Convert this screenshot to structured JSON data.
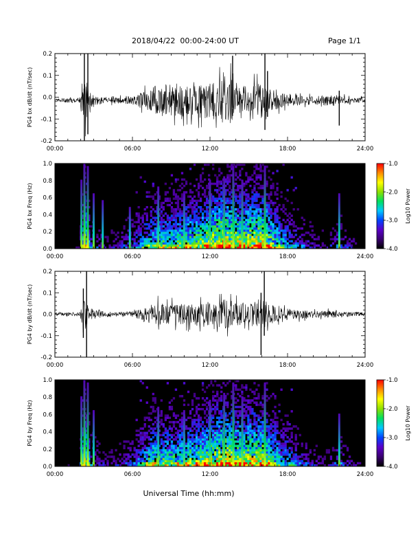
{
  "header": {
    "title": "2018/04/22  00:00-24:00 UT",
    "page": "Page 1/1"
  },
  "chart_data": [
    {
      "type": "line",
      "ylabel": "PG4 bx dB/dt (nT/sec)",
      "xlim": [
        0,
        24
      ],
      "ylim": [
        -0.2,
        0.2
      ],
      "xticks": [
        "00:00",
        "06:00",
        "12:00",
        "18:00",
        "24:00"
      ],
      "yticks": [
        "-0.2",
        "-0.1",
        "0.0",
        "0.1",
        "0.2"
      ],
      "baseline": -0.015,
      "envelope": [
        {
          "t": 0.0,
          "a": 0.01
        },
        {
          "t": 1.9,
          "a": 0.012
        },
        {
          "t": 2.1,
          "a": 0.06
        },
        {
          "t": 2.4,
          "a": 0.13
        },
        {
          "t": 2.6,
          "a": 0.05
        },
        {
          "t": 3.2,
          "a": 0.025
        },
        {
          "t": 4.5,
          "a": 0.015
        },
        {
          "t": 6.0,
          "a": 0.02
        },
        {
          "t": 7.0,
          "a": 0.05
        },
        {
          "t": 8.0,
          "a": 0.08
        },
        {
          "t": 9.0,
          "a": 0.09
        },
        {
          "t": 10.5,
          "a": 0.08
        },
        {
          "t": 11.5,
          "a": 0.09
        },
        {
          "t": 12.5,
          "a": 0.1
        },
        {
          "t": 13.5,
          "a": 0.12
        },
        {
          "t": 14.3,
          "a": 0.08
        },
        {
          "t": 15.0,
          "a": 0.07
        },
        {
          "t": 16.0,
          "a": 0.09
        },
        {
          "t": 17.0,
          "a": 0.05
        },
        {
          "t": 18.0,
          "a": 0.035
        },
        {
          "t": 20.0,
          "a": 0.02
        },
        {
          "t": 21.5,
          "a": 0.03
        },
        {
          "t": 22.5,
          "a": 0.02
        },
        {
          "t": 24.0,
          "a": 0.012
        }
      ],
      "spikes": [
        {
          "t": 2.28,
          "min": -0.21,
          "max": 0.2
        },
        {
          "t": 2.55,
          "min": -0.17,
          "max": 0.2
        },
        {
          "t": 13.75,
          "min": -0.05,
          "max": 0.19
        },
        {
          "t": 16.25,
          "min": -0.15,
          "max": 0.2
        },
        {
          "t": 16.45,
          "min": -0.09,
          "max": 0.12
        },
        {
          "t": 22.0,
          "min": -0.13,
          "max": 0.03
        }
      ]
    },
    {
      "type": "heatmap",
      "ylabel": "PG4 bx Freq (Hz)",
      "xlim": [
        0,
        24
      ],
      "ylim": [
        0.0,
        1.0
      ],
      "xticks": [
        "00:00",
        "06:00",
        "12:00",
        "18:00",
        "24:00"
      ],
      "yticks": [
        "0.0",
        "0.2",
        "0.4",
        "0.6",
        "0.8",
        "1.0"
      ],
      "colorbar": {
        "label": "Log10 Power",
        "range": [
          -4.0,
          -1.0
        ],
        "ticks": [
          "-1.0",
          "-2.0",
          "-3.0",
          "-4.0"
        ]
      },
      "activity": [
        {
          "t": 0.0,
          "a": 0.05
        },
        {
          "t": 1.9,
          "a": 0.1
        },
        {
          "t": 2.3,
          "a": 0.8
        },
        {
          "t": 2.8,
          "a": 0.3
        },
        {
          "t": 4.0,
          "a": 0.15
        },
        {
          "t": 6.0,
          "a": 0.3
        },
        {
          "t": 7.5,
          "a": 0.55
        },
        {
          "t": 9.5,
          "a": 0.6
        },
        {
          "t": 11.5,
          "a": 0.7
        },
        {
          "t": 13.0,
          "a": 0.85
        },
        {
          "t": 14.5,
          "a": 0.75
        },
        {
          "t": 16.0,
          "a": 0.85
        },
        {
          "t": 17.5,
          "a": 0.5
        },
        {
          "t": 19.5,
          "a": 0.25
        },
        {
          "t": 21.0,
          "a": 0.15
        },
        {
          "t": 22.0,
          "a": 0.3
        },
        {
          "t": 24.0,
          "a": 0.05
        }
      ],
      "streaks": [
        {
          "t": 2.05,
          "a": 0.7
        },
        {
          "t": 2.28,
          "a": 1.0
        },
        {
          "t": 2.55,
          "a": 0.9
        },
        {
          "t": 3.0,
          "a": 0.5
        },
        {
          "t": 3.7,
          "a": 0.4
        },
        {
          "t": 5.8,
          "a": 0.3
        },
        {
          "t": 8.0,
          "a": 0.6
        },
        {
          "t": 10.0,
          "a": 0.5
        },
        {
          "t": 12.0,
          "a": 0.7
        },
        {
          "t": 13.1,
          "a": 0.75
        },
        {
          "t": 13.8,
          "a": 0.9
        },
        {
          "t": 14.5,
          "a": 0.7
        },
        {
          "t": 16.25,
          "a": 0.9
        },
        {
          "t": 22.0,
          "a": 0.5
        }
      ]
    },
    {
      "type": "line",
      "ylabel": "PG4 by dB/dt (nT/sec)",
      "xlim": [
        0,
        24
      ],
      "ylim": [
        -0.2,
        0.2
      ],
      "xticks": [
        "00:00",
        "06:00",
        "12:00",
        "18:00",
        "24:00"
      ],
      "yticks": [
        "-0.2",
        "-0.1",
        "0.0",
        "0.1",
        "0.2"
      ],
      "baseline": 0.0,
      "envelope": [
        {
          "t": 0.0,
          "a": 0.008
        },
        {
          "t": 1.9,
          "a": 0.01
        },
        {
          "t": 2.1,
          "a": 0.05
        },
        {
          "t": 2.4,
          "a": 0.11
        },
        {
          "t": 2.6,
          "a": 0.04
        },
        {
          "t": 3.2,
          "a": 0.02
        },
        {
          "t": 4.5,
          "a": 0.012
        },
        {
          "t": 6.0,
          "a": 0.015
        },
        {
          "t": 7.0,
          "a": 0.04
        },
        {
          "t": 8.0,
          "a": 0.06
        },
        {
          "t": 9.0,
          "a": 0.05
        },
        {
          "t": 10.5,
          "a": 0.055
        },
        {
          "t": 11.5,
          "a": 0.065
        },
        {
          "t": 12.5,
          "a": 0.07
        },
        {
          "t": 13.5,
          "a": 0.08
        },
        {
          "t": 14.3,
          "a": 0.06
        },
        {
          "t": 15.0,
          "a": 0.06
        },
        {
          "t": 16.0,
          "a": 0.08
        },
        {
          "t": 17.0,
          "a": 0.04
        },
        {
          "t": 18.0,
          "a": 0.03
        },
        {
          "t": 20.0,
          "a": 0.015
        },
        {
          "t": 21.5,
          "a": 0.02
        },
        {
          "t": 22.5,
          "a": 0.015
        },
        {
          "t": 24.0,
          "a": 0.01
        }
      ],
      "spikes": [
        {
          "t": 2.2,
          "min": -0.11,
          "max": 0.12
        },
        {
          "t": 2.45,
          "min": -0.2,
          "max": 0.2
        },
        {
          "t": 15.95,
          "min": -0.19,
          "max": 0.1
        },
        {
          "t": 16.2,
          "min": -0.1,
          "max": 0.2
        }
      ]
    },
    {
      "type": "heatmap",
      "ylabel": "PG4 by Freq (Hz)",
      "xlim": [
        0,
        24
      ],
      "ylim": [
        0.0,
        1.0
      ],
      "xticks": [
        "00:00",
        "06:00",
        "12:00",
        "18:00",
        "24:00"
      ],
      "yticks": [
        "0.0",
        "0.2",
        "0.4",
        "0.6",
        "0.8",
        "1.0"
      ],
      "colorbar": {
        "label": "Log10 Power",
        "range": [
          -4.0,
          -1.0
        ],
        "ticks": [
          "-1.0",
          "-2.0",
          "-3.0",
          "-4.0"
        ]
      },
      "activity": [
        {
          "t": 0.0,
          "a": 0.05
        },
        {
          "t": 1.9,
          "a": 0.1
        },
        {
          "t": 2.3,
          "a": 0.8
        },
        {
          "t": 2.8,
          "a": 0.3
        },
        {
          "t": 4.0,
          "a": 0.15
        },
        {
          "t": 6.0,
          "a": 0.3
        },
        {
          "t": 7.5,
          "a": 0.6
        },
        {
          "t": 9.5,
          "a": 0.6
        },
        {
          "t": 11.5,
          "a": 0.7
        },
        {
          "t": 13.0,
          "a": 0.85
        },
        {
          "t": 14.5,
          "a": 0.75
        },
        {
          "t": 16.0,
          "a": 0.8
        },
        {
          "t": 17.5,
          "a": 0.5
        },
        {
          "t": 19.5,
          "a": 0.25
        },
        {
          "t": 21.0,
          "a": 0.15
        },
        {
          "t": 22.0,
          "a": 0.3
        },
        {
          "t": 24.0,
          "a": 0.05
        }
      ],
      "streaks": [
        {
          "t": 2.05,
          "a": 0.7
        },
        {
          "t": 2.28,
          "a": 1.0
        },
        {
          "t": 2.55,
          "a": 0.9
        },
        {
          "t": 3.0,
          "a": 0.5
        },
        {
          "t": 8.0,
          "a": 0.55
        },
        {
          "t": 10.0,
          "a": 0.5
        },
        {
          "t": 12.0,
          "a": 0.65
        },
        {
          "t": 13.1,
          "a": 0.75
        },
        {
          "t": 13.8,
          "a": 0.9
        },
        {
          "t": 14.5,
          "a": 0.7
        },
        {
          "t": 16.25,
          "a": 0.9
        },
        {
          "t": 22.0,
          "a": 0.45
        }
      ]
    }
  ],
  "xlabel": "Universal Time (hh:mm)",
  "colors": {
    "trace": "#000000",
    "spectrogram_background": "#000000",
    "colormap": [
      "#000000",
      "#3a0070",
      "#5a00c8",
      "#0044ff",
      "#00c8ff",
      "#00e060",
      "#8ee000",
      "#ffff00",
      "#ff8c00",
      "#ff0000"
    ]
  }
}
